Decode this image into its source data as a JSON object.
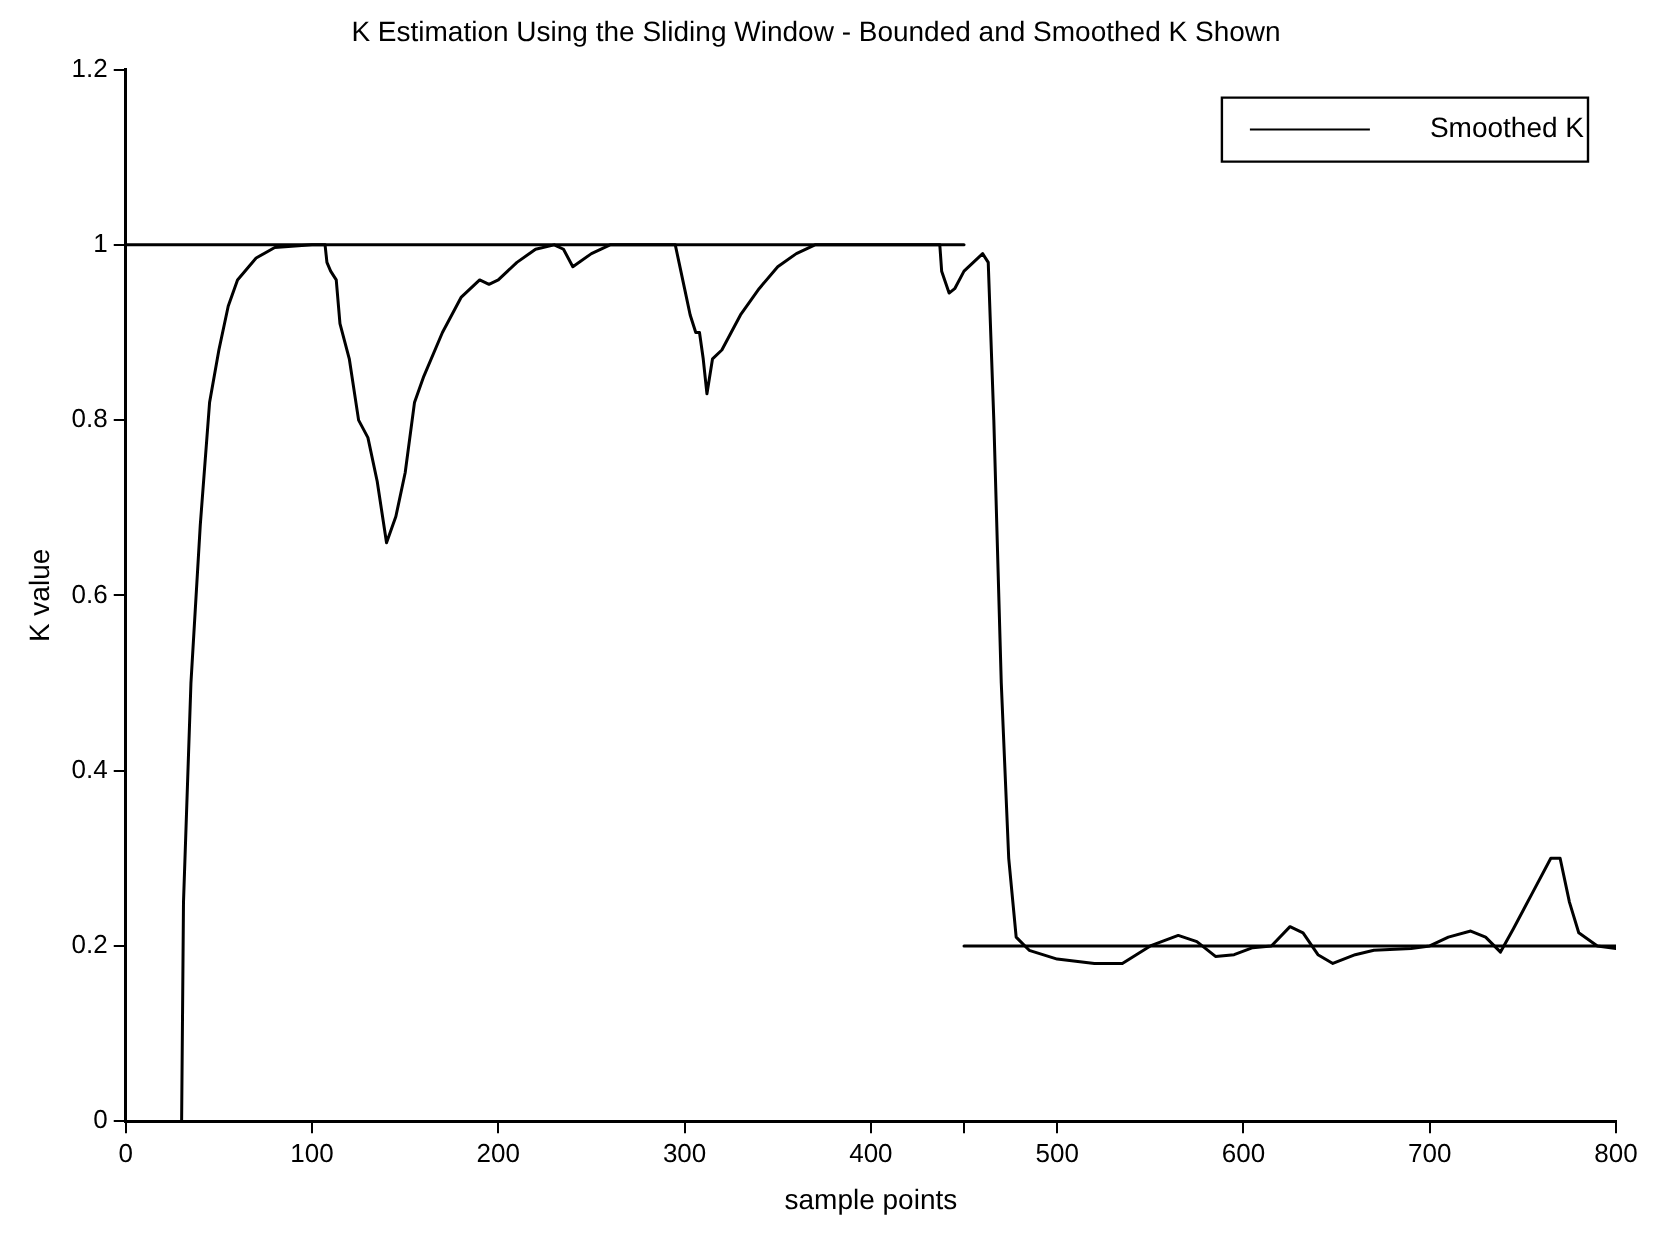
{
  "chart_data": {
    "type": "line",
    "title": "K Estimation Using the Sliding Window - Bounded and Smoothed K Shown",
    "xlabel": "sample points",
    "ylabel": "K value",
    "xlim": [
      0,
      800
    ],
    "xticks": [
      0,
      100,
      200,
      300,
      400,
      {
        "value": 450,
        "label": null
      },
      500,
      600,
      700,
      800
    ],
    "ylim": [
      0,
      1.2
    ],
    "yticks": [
      0,
      0.2,
      0.4,
      0.6,
      0.8,
      1,
      1.2
    ],
    "grid": false,
    "legend": "top right",
    "marker": "none",
    "line_style": "solid",
    "series": [
      {
        "name": "Smoothed K",
        "color": "#000000",
        "x": [
          30,
          31,
          35,
          40,
          45,
          50,
          55,
          60,
          70,
          80,
          100,
          107,
          108,
          110,
          113,
          115,
          120,
          125,
          130,
          135,
          140,
          145,
          150,
          155,
          160,
          170,
          180,
          190,
          195,
          200,
          210,
          220,
          230,
          235,
          240,
          250,
          260,
          295,
          297,
          300,
          303,
          306,
          308,
          310,
          312,
          315,
          320,
          325,
          330,
          340,
          350,
          360,
          370,
          437,
          438,
          442,
          445,
          450,
          455,
          460,
          463,
          466,
          470,
          474,
          478,
          485,
          500,
          520,
          535,
          550,
          565,
          575,
          585,
          595,
          605,
          615,
          625,
          632,
          640,
          648,
          660,
          670,
          690,
          700,
          710,
          722,
          730,
          738,
          745,
          755,
          765,
          770,
          775,
          780,
          790,
          800
        ],
        "values": [
          0,
          0.25,
          0.5,
          0.68,
          0.82,
          0.88,
          0.93,
          0.96,
          0.985,
          0.997,
          1,
          1,
          0.98,
          0.97,
          0.96,
          0.91,
          0.87,
          0.8,
          0.78,
          0.73,
          0.66,
          0.69,
          0.74,
          0.82,
          0.85,
          0.9,
          0.94,
          0.96,
          0.955,
          0.96,
          0.98,
          0.995,
          1,
          0.995,
          0.975,
          0.99,
          1,
          1,
          0.98,
          0.95,
          0.92,
          0.9,
          0.9,
          0.87,
          0.83,
          0.87,
          0.88,
          0.9,
          0.92,
          0.95,
          0.975,
          0.99,
          1,
          1,
          0.97,
          0.945,
          0.95,
          0.97,
          0.98,
          0.99,
          0.98,
          0.8,
          0.5,
          0.3,
          0.21,
          0.195,
          0.185,
          0.18,
          0.18,
          0.2,
          0.212,
          0.205,
          0.188,
          0.19,
          0.198,
          0.2,
          0.222,
          0.215,
          0.19,
          0.18,
          0.19,
          0.195,
          0.197,
          0.2,
          0.21,
          0.217,
          0.21,
          0.193,
          0.22,
          0.26,
          0.3,
          0.3,
          0.25,
          0.215,
          0.2,
          0.197
        ]
      },
      {
        "type": "line",
        "color": "#000000",
        "x": [
          0,
          450
        ],
        "values": [
          1,
          1
        ]
      },
      {
        "type": "line",
        "color": "#000000",
        "x": [
          450,
          800
        ],
        "values": [
          0.2,
          0.2
        ]
      }
    ]
  }
}
